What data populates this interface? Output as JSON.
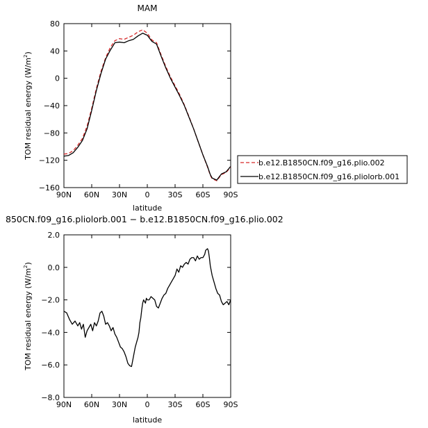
{
  "chart_data": [
    {
      "type": "line",
      "title": "MAM",
      "xlabel": "latitude",
      "ylabel": "TOM residual energy",
      "ylabel_units_prefix": "(W/m",
      "ylabel_units_exp": "2",
      "ylabel_units_suffix": ")",
      "ylim": [
        -160,
        80
      ],
      "yticks": [
        -160,
        -120,
        -80,
        -40,
        0,
        40,
        80
      ],
      "ytick_labels": [
        "−160",
        "−120",
        "−80",
        "−40",
        "0",
        "40",
        "80"
      ],
      "xlim": [
        90,
        -90
      ],
      "xticks": [
        90,
        60,
        30,
        0,
        -30,
        -60,
        -90
      ],
      "xtick_labels": [
        "90N",
        "60N",
        "30N",
        "0",
        "30S",
        "60S",
        "90S"
      ],
      "legend_position": "right",
      "series": [
        {
          "name": "b.e12.B1850CN.f09_g16.plio.002",
          "color": "#d62728",
          "dash": "dashed",
          "x": [
            90,
            85,
            80,
            75,
            70,
            65,
            60,
            55,
            50,
            45,
            40,
            35,
            30,
            25,
            20,
            15,
            10,
            5,
            0,
            -5,
            -10,
            -15,
            -20,
            -25,
            -30,
            -35,
            -40,
            -45,
            -50,
            -55,
            -60,
            -65,
            -68,
            -70,
            -75,
            -80,
            -85,
            -90
          ],
          "y": [
            -111,
            -110,
            -106,
            -98,
            -88,
            -70,
            -44,
            -15,
            10,
            30,
            45,
            55,
            58,
            57,
            60,
            63,
            68,
            71,
            66,
            56,
            52,
            34,
            17,
            2,
            -11,
            -24,
            -39,
            -56,
            -74,
            -93,
            -112,
            -130,
            -142,
            -147,
            -150,
            -141,
            -138,
            -130
          ]
        },
        {
          "name": "b.e12.B1850CN.f09_g16.pliolorb.001",
          "color": "#000000",
          "dash": "solid",
          "x": [
            90,
            85,
            80,
            75,
            70,
            65,
            60,
            55,
            50,
            45,
            40,
            35,
            30,
            25,
            20,
            15,
            10,
            5,
            0,
            -5,
            -10,
            -15,
            -20,
            -25,
            -30,
            -35,
            -40,
            -45,
            -50,
            -55,
            -60,
            -65,
            -68,
            -70,
            -75,
            -80,
            -85,
            -90
          ],
          "y": [
            -114,
            -113,
            -109,
            -101,
            -91,
            -74,
            -47,
            -18,
            7,
            28,
            41,
            52,
            53,
            52,
            55,
            57,
            62,
            66,
            63,
            54,
            50,
            32,
            15,
            0,
            -13,
            -26,
            -40,
            -57,
            -74,
            -93,
            -112,
            -129,
            -141,
            -146,
            -149,
            -140,
            -137,
            -129
          ]
        }
      ]
    },
    {
      "type": "line",
      "title": "850CN.f09_g16.pliolorb.001 − b.e12.B1850CN.f09_g16.plio.002",
      "xlabel": "latitude",
      "ylabel": "TOM residual energy",
      "ylabel_units_prefix": "(W/m",
      "ylabel_units_exp": "2",
      "ylabel_units_suffix": ")",
      "ylim": [
        -8.0,
        2.0
      ],
      "yticks": [
        -8,
        -6,
        -4,
        -2,
        0,
        2
      ],
      "ytick_labels": [
        "−8.0",
        "−6.0",
        "−4.0",
        "−2.0",
        "0.0",
        "2.0"
      ],
      "xlim": [
        90,
        -90
      ],
      "xticks": [
        90,
        60,
        30,
        0,
        -30,
        -60,
        -90
      ],
      "xtick_labels": [
        "90N",
        "60N",
        "30N",
        "0",
        "30S",
        "60S",
        "90S"
      ],
      "series": [
        {
          "color": "#000000",
          "x": [
            90,
            87,
            84,
            81,
            78,
            75,
            73,
            71,
            69,
            67,
            65,
            63,
            61,
            59,
            57,
            55,
            53,
            51,
            49,
            47,
            45,
            43,
            41,
            39,
            37,
            35,
            33,
            31,
            29,
            27,
            25,
            23,
            21,
            19,
            17,
            16,
            15,
            14,
            13,
            12,
            11,
            10,
            9,
            8,
            7,
            6,
            5,
            4,
            3,
            2,
            1,
            0,
            -2,
            -4,
            -6,
            -8,
            -10,
            -12,
            -14,
            -16,
            -18,
            -20,
            -22,
            -24,
            -26,
            -28,
            -30,
            -32,
            -34,
            -36,
            -38,
            -40,
            -42,
            -44,
            -46,
            -48,
            -50,
            -52,
            -54,
            -56,
            -58,
            -60,
            -62,
            -63,
            -64,
            -65,
            -66,
            -67,
            -68,
            -70,
            -72,
            -74,
            -76,
            -78,
            -80,
            -82,
            -84,
            -86,
            -88,
            -90
          ],
          "y": [
            -2.7,
            -2.8,
            -3.2,
            -3.5,
            -3.3,
            -3.6,
            -3.4,
            -3.8,
            -3.5,
            -4.3,
            -3.9,
            -3.7,
            -3.5,
            -3.9,
            -3.4,
            -3.6,
            -3.3,
            -2.8,
            -2.7,
            -3.0,
            -3.5,
            -3.4,
            -3.6,
            -3.9,
            -3.7,
            -4.1,
            -4.3,
            -4.6,
            -4.9,
            -5.0,
            -5.2,
            -5.5,
            -5.9,
            -6.05,
            -6.1,
            -5.8,
            -5.5,
            -5.2,
            -4.9,
            -4.7,
            -4.5,
            -4.3,
            -4.0,
            -3.4,
            -3.1,
            -2.6,
            -2.2,
            -2.0,
            -2.1,
            -2.2,
            -1.9,
            -2.0,
            -2.0,
            -1.8,
            -1.9,
            -2.0,
            -2.4,
            -2.5,
            -2.2,
            -1.9,
            -1.7,
            -1.6,
            -1.3,
            -1.1,
            -0.9,
            -0.7,
            -0.5,
            -0.1,
            -0.3,
            0.1,
            0.0,
            0.2,
            0.3,
            0.2,
            0.5,
            0.6,
            0.6,
            0.4,
            0.7,
            0.5,
            0.6,
            0.6,
            0.8,
            1.05,
            1.1,
            1.15,
            1.0,
            0.6,
            0.1,
            -0.5,
            -0.9,
            -1.3,
            -1.6,
            -1.7,
            -2.1,
            -2.3,
            -2.2,
            -2.1,
            -2.3,
            -2.0
          ]
        }
      ]
    }
  ]
}
